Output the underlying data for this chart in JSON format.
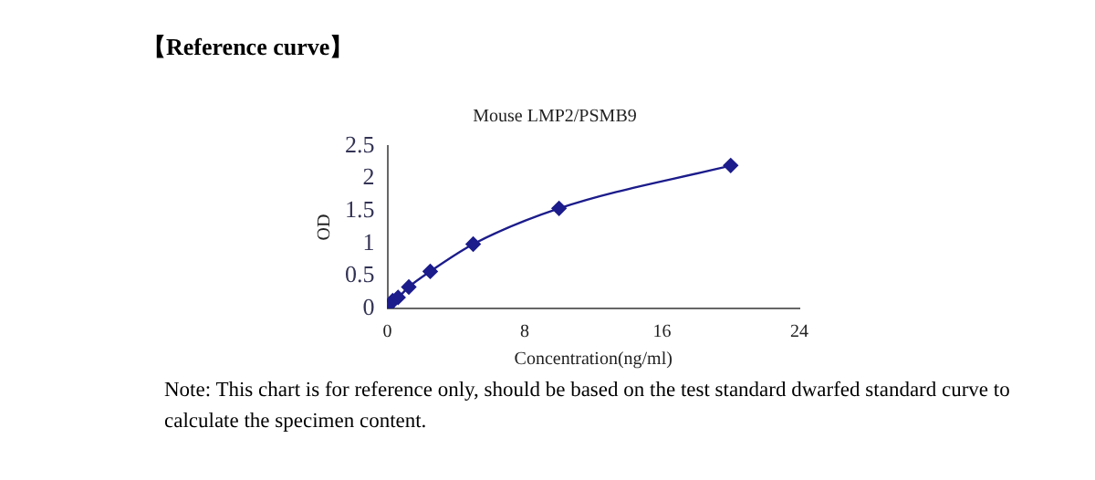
{
  "chart_data": {
    "type": "line",
    "title": "【Reference curve】",
    "subtitle": "Mouse LMP2/PSMB9",
    "xlabel": "Concentration(ng/ml)",
    "ylabel": "OD",
    "x": [
      0,
      0.156,
      0.312,
      0.625,
      1.25,
      2.5,
      5,
      10,
      20
    ],
    "series": [
      {
        "color": "#1c1c8c",
        "values": [
          0.03,
          0.07,
          0.12,
          0.17,
          0.33,
          0.57,
          0.99,
          1.54,
          2.2
        ]
      }
    ],
    "xlim": [
      0,
      24
    ],
    "xticks": [
      0,
      8,
      16,
      24
    ],
    "ylim": [
      0,
      2.5
    ],
    "yticks": [
      0,
      0.5,
      1,
      1.5,
      2,
      2.5
    ],
    "grid": false,
    "legend": false,
    "marker": "diamond",
    "line_style": "solid",
    "annotations": [
      "Note: This chart is for reference only, should be based on the test standard dwarfed standard curve to calculate the specimen content."
    ]
  }
}
